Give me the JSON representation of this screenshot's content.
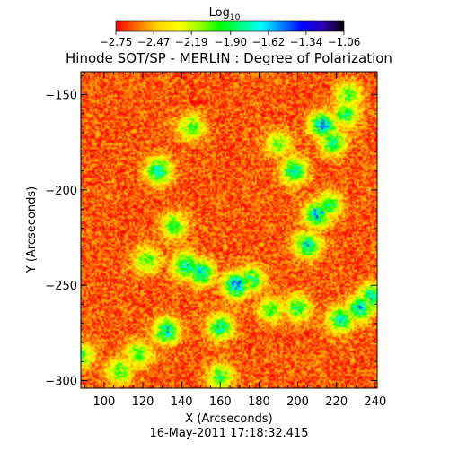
{
  "chart_data": {
    "type": "heatmap",
    "title": "Hinode SOT/SP - MERLIN : Degree of Polarization",
    "xlabel": "X (Arcseconds)",
    "ylabel": "Y (Arcseconds)",
    "timestamp": "16-May-2011 17:18:32.415",
    "xlim": [
      88,
      241
    ],
    "ylim": [
      -304,
      -138
    ],
    "x_ticks": [
      100,
      120,
      140,
      160,
      180,
      200,
      220,
      240
    ],
    "y_ticks": [
      -150,
      -200,
      -250,
      -300
    ],
    "x_tick_labels": [
      "100",
      "120",
      "140",
      "160",
      "180",
      "200",
      "220",
      "240"
    ],
    "y_tick_labels": [
      "−150",
      "−200",
      "−250",
      "−300"
    ],
    "colorbar": {
      "label_base": "Log",
      "label_subscript": "10",
      "range": [
        -2.75,
        -1.06
      ],
      "ticks": [
        -2.75,
        -2.47,
        -2.19,
        -1.9,
        -1.62,
        -1.34,
        -1.06
      ],
      "tick_labels": [
        "−2.75",
        "−2.47",
        "−2.19",
        "−1.90",
        "−1.62",
        "−1.34",
        "−1.06"
      ],
      "colors": [
        "#ff0000",
        "#ff6a00",
        "#ffd400",
        "#ffff00",
        "#a0ff00",
        "#00ff00",
        "#00ff80",
        "#00ffff",
        "#0080ff",
        "#0000ff",
        "#3000b0",
        "#000000"
      ]
    },
    "background_level": -2.62,
    "features": [
      {
        "x": 150,
        "y": -243,
        "level": -1.7
      },
      {
        "x": 168,
        "y": -250,
        "level": -1.55
      },
      {
        "x": 142,
        "y": -240,
        "level": -1.75
      },
      {
        "x": 176,
        "y": -247,
        "level": -1.85
      },
      {
        "x": 210,
        "y": -213,
        "level": -1.65
      },
      {
        "x": 205,
        "y": -229,
        "level": -1.75
      },
      {
        "x": 216,
        "y": -208,
        "level": -1.9
      },
      {
        "x": 198,
        "y": -190,
        "level": -1.75
      },
      {
        "x": 218,
        "y": -175,
        "level": -1.85
      },
      {
        "x": 213,
        "y": -166,
        "level": -1.6
      },
      {
        "x": 128,
        "y": -190,
        "level": -1.75
      },
      {
        "x": 136,
        "y": -219,
        "level": -1.95
      },
      {
        "x": 145,
        "y": -167,
        "level": -2.0
      },
      {
        "x": 225,
        "y": -160,
        "level": -1.9
      },
      {
        "x": 132,
        "y": -274,
        "level": -1.7
      },
      {
        "x": 160,
        "y": -272,
        "level": -1.8
      },
      {
        "x": 118,
        "y": -286,
        "level": -2.0
      },
      {
        "x": 108,
        "y": -295,
        "level": -2.0
      },
      {
        "x": 222,
        "y": -268,
        "level": -1.75
      },
      {
        "x": 232,
        "y": -262,
        "level": -1.7
      },
      {
        "x": 238,
        "y": -256,
        "level": -1.8
      },
      {
        "x": 200,
        "y": -262,
        "level": -1.9
      },
      {
        "x": 186,
        "y": -263,
        "level": -2.0
      },
      {
        "x": 160,
        "y": -298,
        "level": -1.95
      },
      {
        "x": 88,
        "y": -287,
        "level": -2.0
      },
      {
        "x": 190,
        "y": -176,
        "level": -2.05
      },
      {
        "x": 122,
        "y": -237,
        "level": -2.0
      },
      {
        "x": 226,
        "y": -150,
        "level": -2.0
      }
    ]
  }
}
